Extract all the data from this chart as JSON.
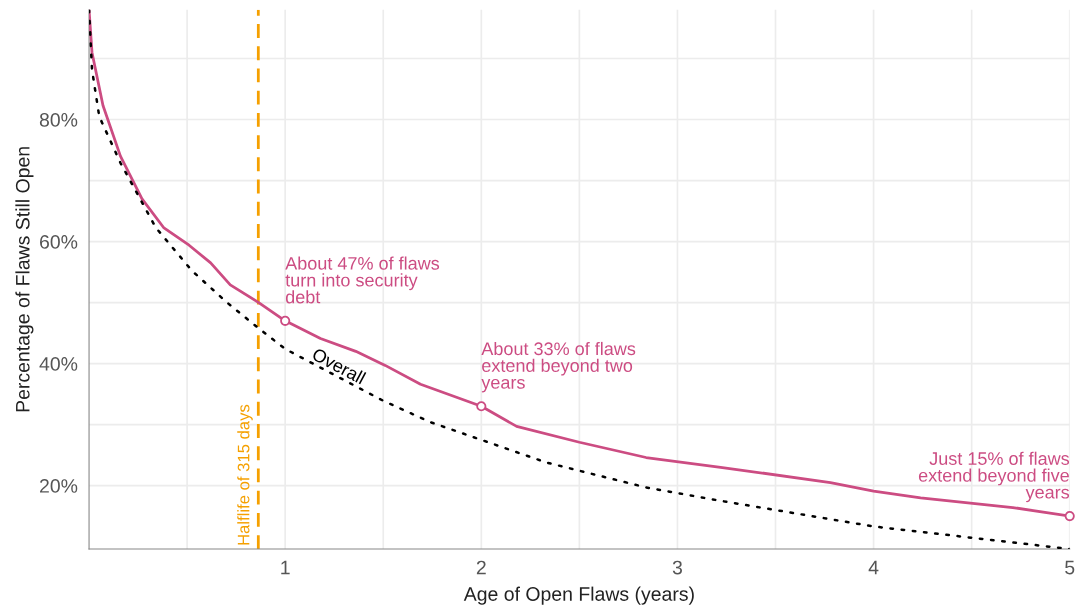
{
  "chart_data": {
    "type": "line",
    "xlabel": "Age of Open Flaws (years)",
    "ylabel": "Percentage of Flaws Still Open",
    "xlim": [
      0,
      5
    ],
    "ylim": [
      9.6,
      98
    ],
    "xticks": [
      {
        "value": 0.5,
        "label": null
      },
      1,
      {
        "value": 1.5,
        "label": null
      },
      2,
      {
        "value": 2.5,
        "label": null
      },
      3,
      {
        "value": 3.5,
        "label": null
      },
      4,
      {
        "value": 4.5,
        "label": null
      },
      5
    ],
    "yticks": [
      {
        "value": 20,
        "label": "20%"
      },
      {
        "value": 30,
        "label": null
      },
      {
        "value": 40,
        "label": "40%"
      },
      {
        "value": 50,
        "label": null
      },
      {
        "value": 60,
        "label": "60%"
      },
      {
        "value": 70,
        "label": null
      },
      {
        "value": 80,
        "label": "80%"
      },
      {
        "value": 90,
        "label": null
      }
    ],
    "grid": true,
    "series": [
      {
        "color": "#cc4c82",
        "line_style": "solid",
        "x": [
          0,
          0.015,
          0.071,
          0.16,
          0.27,
          0.38,
          0.51,
          0.62,
          0.72,
          0.865,
          1.0,
          1.18,
          1.36,
          1.51,
          1.69,
          2.0,
          2.18,
          2.5,
          2.84,
          3.22,
          3.78,
          4.0,
          4.24,
          4.71,
          5.0
        ],
        "values": [
          98,
          91,
          82.3,
          74,
          67,
          62.3,
          59.4,
          56.5,
          52.9,
          50,
          47,
          44.1,
          42,
          39.7,
          36.6,
          33,
          29.7,
          27.1,
          24.6,
          23,
          20.5,
          19.1,
          18,
          16.4,
          15
        ]
      },
      {
        "name": "Overall",
        "color": "#000000",
        "line_style": "dotted",
        "x": [
          0,
          0.015,
          0.052,
          0.16,
          0.34,
          0.525,
          0.7,
          0.86,
          1.0,
          1.5,
          1.74,
          2.33,
          2.84,
          3.22,
          4.0,
          5.0
        ],
        "values": [
          98,
          88.2,
          80.5,
          72.9,
          62.3,
          55.2,
          50.1,
          45.9,
          42.4,
          33.9,
          30.4,
          23.8,
          19.7,
          17.5,
          13.3,
          9.6
        ]
      }
    ],
    "ref_lines": [
      {
        "axis": "x",
        "value": 0.863,
        "label": "Halflife of 315 days",
        "color": "#f5a000",
        "line_style": "dashed"
      }
    ],
    "annotations": [
      {
        "text": "About 47% of flaws\nturn into security\ndebt",
        "x": 1,
        "y": 47
      },
      {
        "text": "About 33% of flaws\nextend beyond two\nyears",
        "x": 2,
        "y": 33
      },
      {
        "text": "Just 15% of flaws\nextend beyond five\nyears",
        "x": 5,
        "y": 15
      }
    ]
  }
}
